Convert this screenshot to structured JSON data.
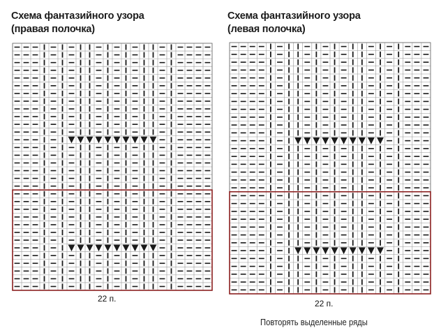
{
  "charts": [
    {
      "id": "right",
      "title_line1": "Схема фантазийного узора",
      "title_line2": "(правая полочка)",
      "stitch_count_label": "22 п.",
      "cols": 22,
      "rows": 32,
      "knit_cols": [
        3,
        5,
        7,
        8,
        10,
        12,
        14,
        15,
        17
      ],
      "decrease_rows": [
        12,
        26
      ],
      "decrease_cols": [
        6,
        7,
        8,
        9,
        10,
        11,
        12,
        13,
        14,
        15
      ],
      "highlight_rows_from": 19,
      "highlight_rows_to": 31
    },
    {
      "id": "left",
      "title_line1": "Схема фантазийного узора",
      "title_line2": "(левая полочка)",
      "stitch_count_label": "22 п.",
      "cols": 22,
      "rows": 32,
      "knit_cols": [
        4,
        6,
        7,
        9,
        11,
        13,
        14,
        16,
        18
      ],
      "decrease_rows": [
        12,
        26
      ],
      "decrease_cols": [
        7,
        8,
        9,
        10,
        11,
        12,
        13,
        14,
        15,
        16
      ],
      "highlight_rows_from": 19,
      "highlight_rows_to": 31
    }
  ],
  "note": "Повторять выделенные ряды",
  "colors": {
    "grid_line": "#9a9a9a",
    "symbol": "#1a1a1a",
    "highlight_frame": "#8b1f1f"
  },
  "legend_icons": [
    "purl-dash-symbol",
    "knit-bar-symbol",
    "decrease-triangle-symbol"
  ]
}
